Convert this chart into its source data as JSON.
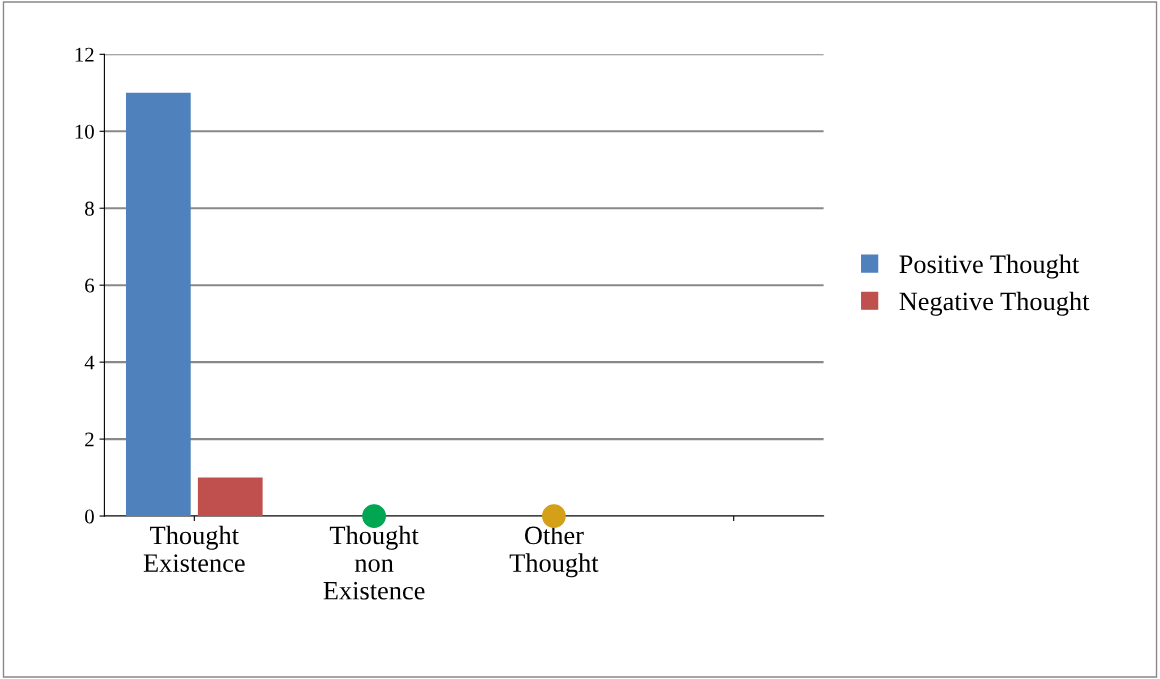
{
  "chart_data": {
    "type": "bar",
    "categories": [
      "Thought\nExistence",
      "Thought\nnon\nExistence",
      "Other\nThought",
      null
    ],
    "series": [
      {
        "name": "Positive Thought",
        "color": "#4f81bd",
        "values": [
          11,
          null,
          null,
          null
        ]
      },
      {
        "name": "Negative Thought",
        "color": "#c0504d",
        "values": [
          1,
          null,
          null,
          null
        ]
      },
      {
        "type": "scatter",
        "colors": [
          "#00a651",
          "#d4a017"
        ],
        "x": [
          "Thought\nnon\nExistence",
          "Other\nThought"
        ],
        "values": [
          0,
          0
        ]
      }
    ],
    "ylim": [
      0,
      12
    ],
    "yticks": [
      0,
      2,
      4,
      6,
      8,
      10,
      12
    ],
    "grid": "y",
    "legend": "right"
  }
}
